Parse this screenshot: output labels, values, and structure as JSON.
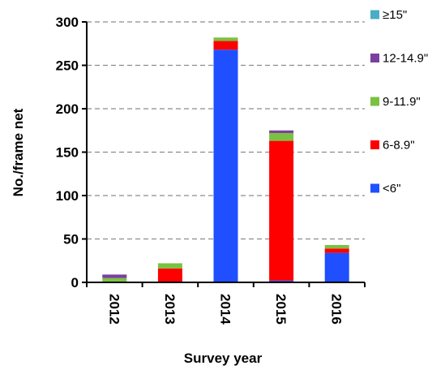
{
  "chart_data": {
    "type": "bar",
    "stacked": true,
    "xlabel": "Survey year",
    "ylabel": "No./frame net",
    "ylim": [
      0,
      300
    ],
    "yticks": [
      0,
      50,
      100,
      150,
      200,
      250,
      300
    ],
    "grid": "horizontal dashed",
    "legend_position": "right",
    "categories": [
      "2012",
      "2013",
      "2014",
      "2015",
      "2016"
    ],
    "series": [
      {
        "name": "<6\"",
        "color": "#1f4fff",
        "values": [
          0,
          0,
          268,
          2,
          34
        ]
      },
      {
        "name": "6-8.9\"",
        "color": "#ff0000",
        "values": [
          1,
          16,
          10,
          161,
          5
        ]
      },
      {
        "name": "9-11.9\"",
        "color": "#7ac142",
        "values": [
          4,
          6,
          4,
          9,
          4
        ]
      },
      {
        "name": "12-14.9\"",
        "color": "#7b3fa0",
        "values": [
          4,
          0,
          0,
          3,
          0
        ]
      },
      {
        "name": "≥15\"",
        "color": "#4bacc6",
        "values": [
          0,
          0,
          0,
          0,
          0
        ]
      }
    ]
  }
}
